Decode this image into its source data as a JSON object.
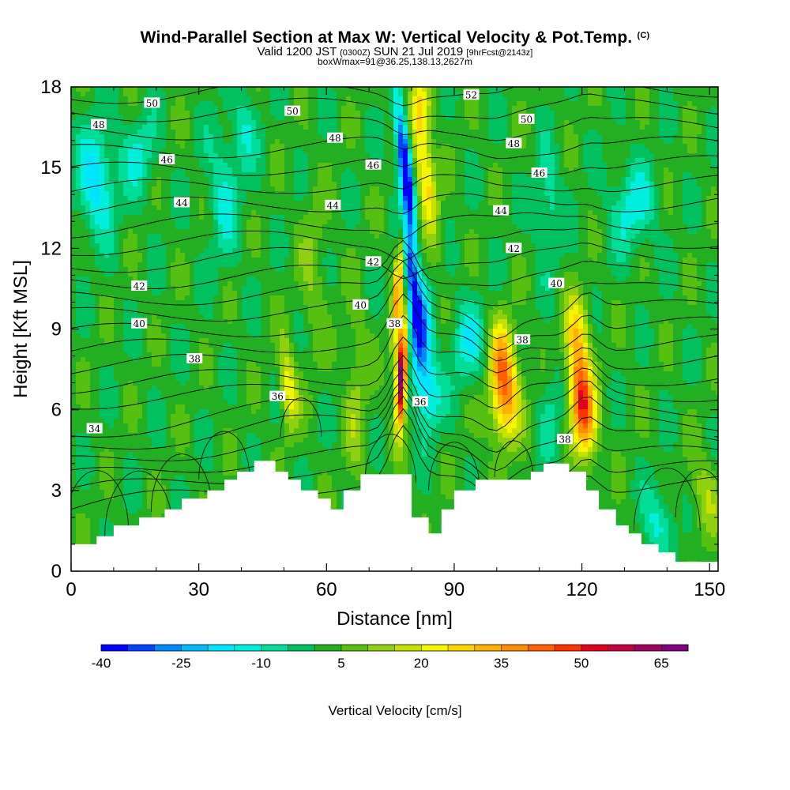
{
  "header": {
    "title": "Wind-Parallel Section at Max W: Vertical Velocity & Pot.Temp.",
    "title_unit": "(C)",
    "subtitle_valid": "Valid 1200 JST",
    "subtitle_zulu": "(0300Z)",
    "subtitle_date": "SUN 21 Jul 2019",
    "subtitle_fcst": "[9hrFcst@2143z]",
    "subnote": "boxWmax=91@36.25,138.13,2627m"
  },
  "chart_data": {
    "type": "contour-section",
    "title": "Wind-Parallel Section at Max W: Vertical Velocity & Pot.Temp.",
    "xlabel": "Distance [nm]",
    "ylabel": "Height [Kft MSL]",
    "xlim": [
      0,
      152
    ],
    "ylim": [
      0,
      18
    ],
    "xticks": [
      0,
      30,
      60,
      90,
      120,
      150
    ],
    "yticks": [
      0,
      3,
      6,
      9,
      12,
      15,
      18
    ],
    "fill_variable": "Vertical Velocity [cm/s]",
    "contour_variable": "Potential Temperature (C)",
    "colorbar": {
      "label": "Vertical Velocity [cm/s]",
      "tick_labels": [
        "-40",
        "-25",
        "-10",
        "5",
        "20",
        "35",
        "50",
        "65"
      ],
      "levels_min": -40,
      "levels_step": 5,
      "colors": [
        "#0000ff",
        "#0044ff",
        "#0088ff",
        "#00bbff",
        "#00e5ff",
        "#00eedd",
        "#00dd99",
        "#00c060",
        "#22b022",
        "#55c010",
        "#90d010",
        "#c8e000",
        "#f5f500",
        "#ffd400",
        "#ffb000",
        "#ff8c00",
        "#ff6000",
        "#ff3300",
        "#e00020",
        "#c00040",
        "#a00060",
        "#800080"
      ]
    },
    "theta_levels": [
      34,
      36,
      38,
      40,
      42,
      44,
      46,
      48,
      50,
      52
    ],
    "terrain": [
      [
        0,
        1.0
      ],
      [
        6,
        1.0
      ],
      [
        6,
        1.3
      ],
      [
        10,
        1.3
      ],
      [
        10,
        1.7
      ],
      [
        16,
        1.7
      ],
      [
        16,
        2.0
      ],
      [
        22,
        2.0
      ],
      [
        22,
        2.3
      ],
      [
        26,
        2.3
      ],
      [
        26,
        2.7
      ],
      [
        32,
        2.7
      ],
      [
        32,
        3.0
      ],
      [
        36,
        3.0
      ],
      [
        36,
        3.4
      ],
      [
        39,
        3.4
      ],
      [
        39,
        3.7
      ],
      [
        43,
        3.7
      ],
      [
        43,
        4.1
      ],
      [
        48,
        4.1
      ],
      [
        48,
        3.7
      ],
      [
        51,
        3.7
      ],
      [
        51,
        3.4
      ],
      [
        54,
        3.4
      ],
      [
        54,
        3.0
      ],
      [
        58,
        3.0
      ],
      [
        58,
        2.7
      ],
      [
        61,
        2.7
      ],
      [
        61,
        2.3
      ],
      [
        64,
        2.3
      ],
      [
        64,
        3.0
      ],
      [
        68,
        3.0
      ],
      [
        68,
        3.6
      ],
      [
        80,
        3.6
      ],
      [
        80,
        2.0
      ],
      [
        84,
        2.0
      ],
      [
        84,
        1.4
      ],
      [
        87,
        1.4
      ],
      [
        87,
        2.3
      ],
      [
        90,
        2.3
      ],
      [
        90,
        3.0
      ],
      [
        95,
        3.0
      ],
      [
        95,
        3.4
      ],
      [
        108,
        3.4
      ],
      [
        108,
        3.7
      ],
      [
        111,
        3.7
      ],
      [
        111,
        4.0
      ],
      [
        117,
        4.0
      ],
      [
        117,
        3.7
      ],
      [
        121,
        3.7
      ],
      [
        121,
        3.0
      ],
      [
        124,
        3.0
      ],
      [
        124,
        2.3
      ],
      [
        128,
        2.3
      ],
      [
        128,
        1.7
      ],
      [
        131,
        1.7
      ],
      [
        131,
        1.4
      ],
      [
        134,
        1.4
      ],
      [
        134,
        1.0
      ],
      [
        138,
        1.0
      ],
      [
        138,
        0.7
      ],
      [
        142,
        0.7
      ],
      [
        142,
        0.35
      ],
      [
        152,
        0.35
      ]
    ],
    "w_features": [
      {
        "kind": "updraft",
        "x": 77.5,
        "z": 7.3,
        "w_max": 74
      },
      {
        "kind": "updraft-tilted",
        "x": 83,
        "z": 15,
        "w_max": 28
      },
      {
        "kind": "downdraft-tilted",
        "x": 78,
        "z": 15,
        "w_min": -40
      },
      {
        "kind": "updraft",
        "x": 102,
        "z": 6.5,
        "w_max": 35
      },
      {
        "kind": "updraft",
        "x": 120,
        "z": 6.3,
        "w_max": 50
      },
      {
        "kind": "updraft",
        "x": 51,
        "z": 6.8,
        "w_max": 22
      },
      {
        "kind": "downdraft",
        "x": 6,
        "z": 14.5,
        "w_min": -20
      },
      {
        "kind": "downdraft",
        "x": 132,
        "z": 13.5,
        "w_min": -15
      }
    ],
    "theta_labels": [
      {
        "text": "50",
        "x": 19,
        "z": 17.4
      },
      {
        "text": "50",
        "x": 52,
        "z": 17.1
      },
      {
        "text": "52",
        "x": 94,
        "z": 17.7
      },
      {
        "text": "50",
        "x": 107,
        "z": 16.8
      },
      {
        "text": "48",
        "x": 6.5,
        "z": 16.6
      },
      {
        "text": "48",
        "x": 62,
        "z": 16.1
      },
      {
        "text": "48",
        "x": 104,
        "z": 15.9
      },
      {
        "text": "46",
        "x": 22.5,
        "z": 15.3
      },
      {
        "text": "46",
        "x": 71,
        "z": 15.1
      },
      {
        "text": "46",
        "x": 110,
        "z": 14.8
      },
      {
        "text": "44",
        "x": 26,
        "z": 13.7
      },
      {
        "text": "44",
        "x": 61.5,
        "z": 13.6
      },
      {
        "text": "44",
        "x": 101,
        "z": 13.4
      },
      {
        "text": "42",
        "x": 71,
        "z": 11.5
      },
      {
        "text": "42",
        "x": 104,
        "z": 12.0
      },
      {
        "text": "42",
        "x": 16,
        "z": 10.6
      },
      {
        "text": "40",
        "x": 114,
        "z": 10.7
      },
      {
        "text": "40",
        "x": 68,
        "z": 9.9
      },
      {
        "text": "40",
        "x": 16,
        "z": 9.2
      },
      {
        "text": "38",
        "x": 76,
        "z": 9.2
      },
      {
        "text": "38",
        "x": 106,
        "z": 8.6
      },
      {
        "text": "38",
        "x": 29,
        "z": 7.9
      },
      {
        "text": "36",
        "x": 48.5,
        "z": 6.5
      },
      {
        "text": "36",
        "x": 82,
        "z": 6.3
      },
      {
        "text": "38",
        "x": 116,
        "z": 4.9
      },
      {
        "text": "34",
        "x": 5.5,
        "z": 5.3
      }
    ]
  }
}
